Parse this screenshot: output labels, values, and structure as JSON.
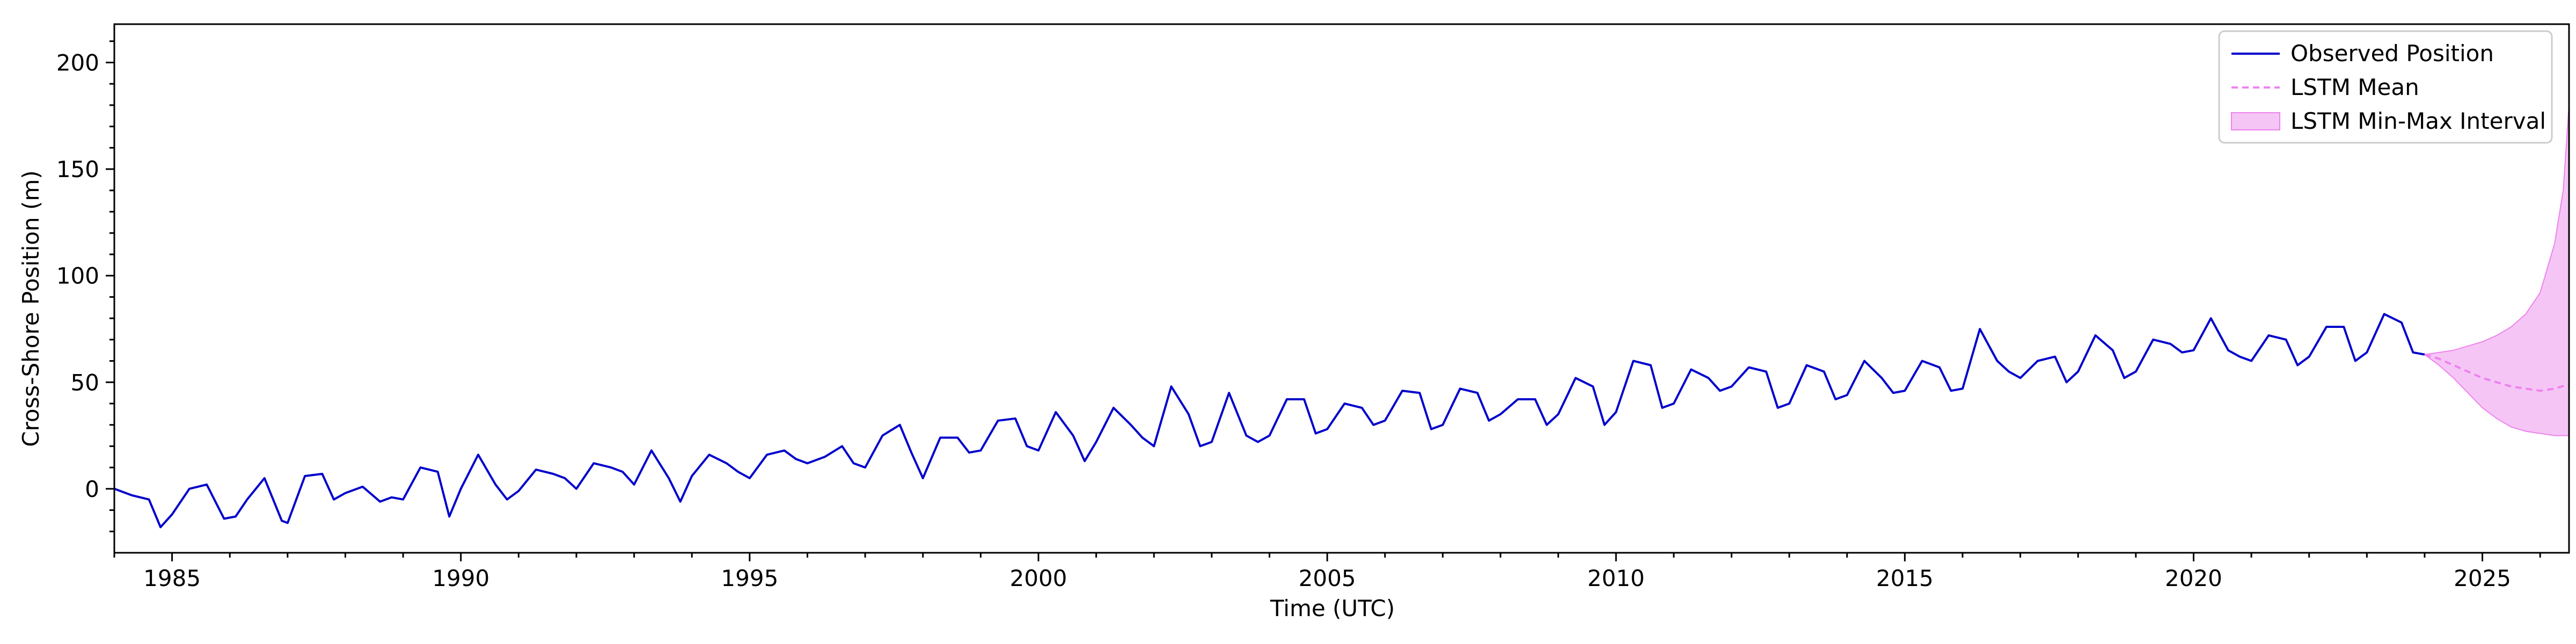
{
  "chart_data": {
    "type": "line",
    "title": "",
    "xlabel": "Time (UTC)",
    "ylabel": "Cross-Shore Position (m)",
    "xlim": [
      1984.0,
      2026.5
    ],
    "ylim": [
      -30,
      218
    ],
    "x_ticks": [
      1985,
      1990,
      1995,
      2000,
      2005,
      2010,
      2015,
      2020,
      2025
    ],
    "y_ticks": [
      0,
      50,
      100,
      150,
      200
    ],
    "grid": false,
    "legend_position": "top-right",
    "legend": [
      "Observed Position",
      "LSTM Mean",
      "LSTM Min-Max Interval"
    ],
    "colors": {
      "observed": "#0000cc",
      "lstm_mean": "#ee82ee",
      "interval_fill": "#f5c6f5",
      "interval_edge": "#ee82ee"
    },
    "series": [
      {
        "name": "Observed Position",
        "style": "solid",
        "x": [
          1984.0,
          1984.3,
          1984.6,
          1984.8,
          1985.0,
          1985.3,
          1985.6,
          1985.9,
          1986.1,
          1986.3,
          1986.6,
          1986.9,
          1987.0,
          1987.3,
          1987.6,
          1987.8,
          1988.0,
          1988.3,
          1988.6,
          1988.8,
          1989.0,
          1989.3,
          1989.6,
          1989.8,
          1990.0,
          1990.3,
          1990.6,
          1990.8,
          1991.0,
          1991.3,
          1991.6,
          1991.8,
          1992.0,
          1992.3,
          1992.6,
          1992.8,
          1993.0,
          1993.3,
          1993.6,
          1993.8,
          1994.0,
          1994.3,
          1994.6,
          1994.8,
          1995.0,
          1995.3,
          1995.6,
          1995.8,
          1996.0,
          1996.3,
          1996.6,
          1996.8,
          1997.0,
          1997.3,
          1997.6,
          1997.8,
          1998.0,
          1998.3,
          1998.6,
          1998.8,
          1999.0,
          1999.3,
          1999.6,
          1999.8,
          2000.0,
          2000.3,
          2000.6,
          2000.8,
          2001.0,
          2001.3,
          2001.6,
          2001.8,
          2002.0,
          2002.3,
          2002.6,
          2002.8,
          2003.0,
          2003.3,
          2003.6,
          2003.8,
          2004.0,
          2004.3,
          2004.6,
          2004.8,
          2005.0,
          2005.3,
          2005.6,
          2005.8,
          2006.0,
          2006.3,
          2006.6,
          2006.8,
          2007.0,
          2007.3,
          2007.6,
          2007.8,
          2008.0,
          2008.3,
          2008.6,
          2008.8,
          2009.0,
          2009.3,
          2009.6,
          2009.8,
          2010.0,
          2010.3,
          2010.6,
          2010.8,
          2011.0,
          2011.3,
          2011.6,
          2011.8,
          2012.0,
          2012.3,
          2012.6,
          2012.8,
          2013.0,
          2013.3,
          2013.6,
          2013.8,
          2014.0,
          2014.3,
          2014.6,
          2014.8,
          2015.0,
          2015.3,
          2015.6,
          2015.8,
          2016.0,
          2016.3,
          2016.6,
          2016.8,
          2017.0,
          2017.3,
          2017.6,
          2017.8,
          2018.0,
          2018.3,
          2018.6,
          2018.8,
          2019.0,
          2019.3,
          2019.6,
          2019.8,
          2020.0,
          2020.3,
          2020.6,
          2020.8,
          2021.0,
          2021.3,
          2021.6,
          2021.8,
          2022.0,
          2022.3,
          2022.6,
          2022.8,
          2023.0,
          2023.3,
          2023.6,
          2023.8,
          2024.0
        ],
        "values": [
          0,
          -3,
          -5,
          -18,
          -12,
          0,
          2,
          -14,
          -13,
          -5,
          5,
          -15,
          -16,
          6,
          7,
          -5,
          -2,
          1,
          -6,
          -4,
          -5,
          10,
          8,
          -13,
          0,
          16,
          2,
          -5,
          -1,
          9,
          7,
          5,
          0,
          12,
          10,
          8,
          2,
          18,
          5,
          -6,
          6,
          16,
          12,
          8,
          5,
          16,
          18,
          14,
          12,
          15,
          20,
          12,
          10,
          25,
          30,
          17,
          5,
          24,
          24,
          17,
          18,
          32,
          33,
          20,
          18,
          36,
          25,
          13,
          22,
          38,
          30,
          24,
          20,
          48,
          35,
          20,
          22,
          45,
          25,
          22,
          25,
          42,
          42,
          26,
          28,
          40,
          38,
          30,
          32,
          46,
          45,
          28,
          30,
          47,
          45,
          32,
          35,
          42,
          42,
          30,
          35,
          52,
          48,
          30,
          36,
          60,
          58,
          38,
          40,
          56,
          52,
          46,
          48,
          57,
          55,
          38,
          40,
          58,
          55,
          42,
          44,
          60,
          52,
          45,
          46,
          60,
          57,
          46,
          47,
          75,
          60,
          55,
          52,
          60,
          62,
          50,
          55,
          72,
          65,
          52,
          55,
          70,
          68,
          64,
          65,
          80,
          65,
          62,
          60,
          72,
          70,
          58,
          62,
          76,
          76,
          60,
          64,
          82,
          78,
          64,
          63
        ]
      },
      {
        "name": "LSTM Mean",
        "style": "dashed",
        "x": [
          2024.0,
          2024.25,
          2024.5,
          2024.75,
          2025.0,
          2025.25,
          2025.5,
          2025.75,
          2026.0,
          2026.25,
          2026.5
        ],
        "values": [
          63,
          61,
          58,
          55,
          52,
          50,
          48,
          47,
          46,
          47,
          49
        ]
      }
    ],
    "interval": {
      "name": "LSTM Min-Max Interval",
      "x": [
        2024.0,
        2024.25,
        2024.5,
        2024.75,
        2025.0,
        2025.25,
        2025.5,
        2025.75,
        2026.0,
        2026.25,
        2026.4,
        2026.5
      ],
      "lower": [
        63,
        58,
        52,
        45,
        38,
        33,
        29,
        27,
        26,
        25,
        25,
        25
      ],
      "upper": [
        63,
        64,
        65,
        67,
        69,
        72,
        76,
        82,
        92,
        115,
        140,
        180
      ]
    }
  }
}
